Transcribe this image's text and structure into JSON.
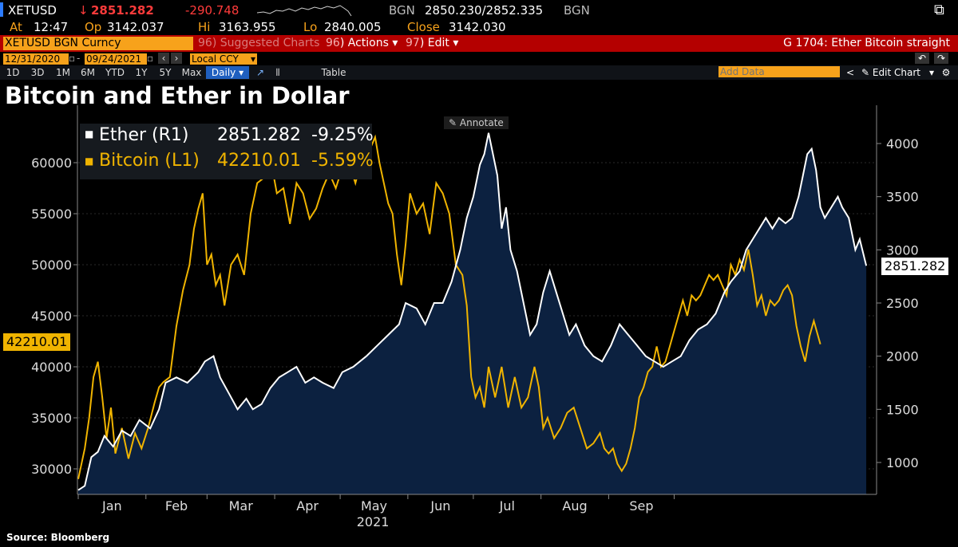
{
  "header": {
    "ticker": "XETUSD",
    "last_price": "2851.282",
    "change": "-290.748",
    "source_code": "BGN",
    "bid_ask": "2850.230/2852.335",
    "source_code_2": "BGN",
    "time_label": "At",
    "time": "12:47",
    "open_label": "Op",
    "open": "3142.037",
    "high_label": "Hi",
    "high": "3163.955",
    "low_label": "Lo",
    "low": "2840.005",
    "close_label": "Close",
    "close": "3142.030"
  },
  "menu": {
    "security": "XETUSD BGN Curncy",
    "suggested": "Suggested Charts",
    "suggested_num": "96",
    "actions": "Actions",
    "actions_num": "96",
    "edit": "Edit",
    "edit_num": "97",
    "chart_id": "G 1704: Ether Bitcoin straight"
  },
  "controls": {
    "start_date": "12/31/2020",
    "end_date": "09/24/2021",
    "currency": "Local CCY",
    "ranges": [
      "1D",
      "3D",
      "1M",
      "6M",
      "YTD",
      "1Y",
      "5Y",
      "Max"
    ],
    "frequency": "Daily",
    "table_label": "Table",
    "add_data_placeholder": "Add Data",
    "edit_chart": "Edit Chart"
  },
  "chart": {
    "title": "Bitcoin and Ether in Dollar",
    "annotate": "Annotate",
    "source": "Source: Bloomberg",
    "legend": [
      {
        "name": "Ether (R1)",
        "last": "2851.282",
        "change": "-9.25%",
        "color": "#ffffff"
      },
      {
        "name": "Bitcoin (L1)",
        "last": "42210.01",
        "change": "-5.59%",
        "color": "#f0b400"
      }
    ],
    "left_last_label": "42210.01",
    "right_last_label": "2851.282"
  },
  "chart_data": {
    "type": "line",
    "title": "Bitcoin and Ether in Dollar",
    "x_axis": {
      "labels": [
        "Jan",
        "Feb",
        "Mar",
        "Apr",
        "May",
        "Jun",
        "Jul",
        "Aug",
        "Sep"
      ],
      "year": "2021"
    },
    "left_axis": {
      "ylim": [
        27500,
        65000
      ],
      "ticks": [
        30000,
        35000,
        40000,
        45000,
        50000,
        55000,
        60000
      ]
    },
    "right_axis": {
      "ylim": [
        700,
        4300
      ],
      "ticks": [
        1000,
        1500,
        2000,
        2500,
        3000,
        3500,
        4000
      ]
    },
    "series": [
      {
        "name": "Ether (R1)",
        "axis": "right",
        "style": "white line with navy area fill",
        "color": "#ffffff",
        "fill": "#0c2140",
        "points": [
          [
            0,
            740
          ],
          [
            3,
            780
          ],
          [
            6,
            1050
          ],
          [
            9,
            1100
          ],
          [
            12,
            1250
          ],
          [
            16,
            1150
          ],
          [
            20,
            1300
          ],
          [
            24,
            1250
          ],
          [
            28,
            1400
          ],
          [
            33,
            1320
          ],
          [
            37,
            1500
          ],
          [
            40,
            1750
          ],
          [
            45,
            1800
          ],
          [
            50,
            1750
          ],
          [
            55,
            1850
          ],
          [
            58,
            1950
          ],
          [
            62,
            2000
          ],
          [
            65,
            1800
          ],
          [
            69,
            1650
          ],
          [
            73,
            1500
          ],
          [
            77,
            1600
          ],
          [
            80,
            1500
          ],
          [
            84,
            1550
          ],
          [
            88,
            1700
          ],
          [
            92,
            1800
          ],
          [
            96,
            1850
          ],
          [
            100,
            1900
          ],
          [
            104,
            1750
          ],
          [
            108,
            1800
          ],
          [
            112,
            1750
          ],
          [
            117,
            1700
          ],
          [
            121,
            1850
          ],
          [
            126,
            1900
          ],
          [
            132,
            2000
          ],
          [
            137,
            2100
          ],
          [
            142,
            2200
          ],
          [
            147,
            2300
          ],
          [
            150,
            2500
          ],
          [
            155,
            2450
          ],
          [
            159,
            2300
          ],
          [
            163,
            2500
          ],
          [
            167,
            2500
          ],
          [
            171,
            2700
          ],
          [
            175,
            3000
          ],
          [
            178,
            3300
          ],
          [
            181,
            3500
          ],
          [
            184,
            3800
          ],
          [
            186,
            3900
          ],
          [
            188,
            4100
          ],
          [
            190,
            3900
          ],
          [
            192,
            3700
          ],
          [
            194,
            3200
          ],
          [
            196,
            3400
          ],
          [
            198,
            3000
          ],
          [
            201,
            2800
          ],
          [
            204,
            2500
          ],
          [
            207,
            2200
          ],
          [
            210,
            2300
          ],
          [
            213,
            2600
          ],
          [
            216,
            2800
          ],
          [
            219,
            2600
          ],
          [
            222,
            2400
          ],
          [
            225,
            2200
          ],
          [
            228,
            2300
          ],
          [
            232,
            2100
          ],
          [
            236,
            2000
          ],
          [
            240,
            1950
          ],
          [
            244,
            2100
          ],
          [
            248,
            2300
          ],
          [
            252,
            2200
          ],
          [
            256,
            2100
          ],
          [
            260,
            2000
          ],
          [
            264,
            1950
          ],
          [
            268,
            1900
          ],
          [
            272,
            1950
          ],
          [
            276,
            2000
          ],
          [
            280,
            2150
          ],
          [
            284,
            2250
          ],
          [
            288,
            2300
          ],
          [
            292,
            2400
          ],
          [
            296,
            2600
          ],
          [
            299,
            2700
          ],
          [
            303,
            2800
          ],
          [
            306,
            3000
          ],
          [
            309,
            3100
          ],
          [
            312,
            3200
          ],
          [
            315,
            3300
          ],
          [
            318,
            3200
          ],
          [
            321,
            3300
          ],
          [
            324,
            3250
          ],
          [
            327,
            3300
          ],
          [
            330,
            3500
          ],
          [
            332,
            3700
          ],
          [
            334,
            3900
          ],
          [
            336,
            3950
          ],
          [
            338,
            3750
          ],
          [
            340,
            3400
          ],
          [
            342,
            3300
          ],
          [
            345,
            3400
          ],
          [
            348,
            3500
          ],
          [
            350,
            3400
          ],
          [
            353,
            3300
          ],
          [
            356,
            3000
          ],
          [
            358,
            3100
          ],
          [
            361,
            2851
          ]
        ]
      },
      {
        "name": "Bitcoin (L1)",
        "axis": "left",
        "style": "yellow line",
        "color": "#f0b400",
        "points": [
          [
            0,
            29000
          ],
          [
            3,
            32000
          ],
          [
            5,
            35000
          ],
          [
            7,
            39000
          ],
          [
            9,
            40500
          ],
          [
            11,
            37000
          ],
          [
            13,
            33000
          ],
          [
            15,
            36000
          ],
          [
            17,
            31500
          ],
          [
            20,
            34000
          ],
          [
            23,
            31000
          ],
          [
            26,
            33500
          ],
          [
            29,
            32000
          ],
          [
            32,
            34000
          ],
          [
            35,
            36500
          ],
          [
            37,
            38000
          ],
          [
            39,
            38500
          ],
          [
            42,
            39000
          ],
          [
            45,
            44000
          ],
          [
            48,
            47500
          ],
          [
            51,
            50000
          ],
          [
            53,
            53500
          ],
          [
            55,
            55500
          ],
          [
            57,
            57000
          ],
          [
            59,
            50000
          ],
          [
            61,
            51000
          ],
          [
            63,
            48000
          ],
          [
            65,
            49000
          ],
          [
            67,
            46000
          ],
          [
            70,
            50000
          ],
          [
            73,
            51000
          ],
          [
            76,
            49000
          ],
          [
            79,
            55000
          ],
          [
            82,
            58000
          ],
          [
            85,
            58500
          ],
          [
            88,
            60500
          ],
          [
            91,
            57000
          ],
          [
            94,
            57500
          ],
          [
            97,
            54000
          ],
          [
            100,
            58000
          ],
          [
            103,
            57000
          ],
          [
            106,
            54500
          ],
          [
            109,
            55500
          ],
          [
            112,
            57500
          ],
          [
            115,
            59000
          ],
          [
            118,
            57500
          ],
          [
            121,
            59500
          ],
          [
            124,
            60000
          ],
          [
            127,
            58000
          ],
          [
            130,
            60500
          ],
          [
            132,
            63000
          ],
          [
            134,
            61500
          ],
          [
            136,
            62500
          ],
          [
            138,
            60000
          ],
          [
            140,
            58000
          ],
          [
            142,
            56000
          ],
          [
            144,
            55000
          ],
          [
            146,
            51000
          ],
          [
            148,
            48000
          ],
          [
            150,
            52000
          ],
          [
            152,
            57000
          ],
          [
            155,
            55000
          ],
          [
            158,
            56000
          ],
          [
            161,
            53000
          ],
          [
            164,
            58000
          ],
          [
            167,
            57000
          ],
          [
            170,
            55000
          ],
          [
            173,
            50000
          ],
          [
            176,
            49000
          ],
          [
            178,
            46000
          ],
          [
            180,
            39000
          ],
          [
            182,
            37000
          ],
          [
            184,
            38000
          ],
          [
            186,
            36000
          ],
          [
            188,
            40000
          ],
          [
            191,
            37000
          ],
          [
            194,
            40000
          ],
          [
            197,
            36000
          ],
          [
            200,
            39000
          ],
          [
            203,
            36000
          ],
          [
            206,
            37000
          ],
          [
            209,
            40000
          ],
          [
            211,
            38000
          ],
          [
            213,
            34000
          ],
          [
            215,
            35000
          ],
          [
            218,
            33000
          ],
          [
            221,
            34000
          ],
          [
            224,
            35500
          ],
          [
            227,
            36000
          ],
          [
            230,
            34000
          ],
          [
            233,
            32000
          ],
          [
            236,
            32500
          ],
          [
            239,
            33500
          ],
          [
            241,
            32000
          ],
          [
            243,
            31500
          ],
          [
            245,
            32000
          ],
          [
            247,
            30500
          ],
          [
            249,
            29800
          ],
          [
            251,
            30500
          ],
          [
            253,
            32000
          ],
          [
            255,
            34000
          ],
          [
            257,
            37000
          ],
          [
            259,
            38000
          ],
          [
            261,
            39500
          ],
          [
            263,
            40000
          ],
          [
            265,
            42000
          ],
          [
            267,
            40000
          ],
          [
            269,
            40500
          ],
          [
            271,
            42000
          ],
          [
            273,
            43500
          ],
          [
            275,
            45000
          ],
          [
            277,
            46500
          ],
          [
            279,
            45000
          ],
          [
            281,
            47000
          ],
          [
            283,
            46500
          ],
          [
            285,
            47000
          ],
          [
            287,
            48000
          ],
          [
            289,
            49000
          ],
          [
            291,
            48500
          ],
          [
            293,
            49000
          ],
          [
            295,
            48000
          ],
          [
            297,
            47000
          ],
          [
            299,
            50000
          ],
          [
            301,
            49000
          ],
          [
            303,
            50500
          ],
          [
            305,
            49500
          ],
          [
            307,
            51500
          ],
          [
            309,
            49000
          ],
          [
            311,
            46000
          ],
          [
            313,
            47000
          ],
          [
            315,
            45000
          ],
          [
            317,
            46500
          ],
          [
            319,
            46000
          ],
          [
            321,
            46500
          ],
          [
            323,
            47500
          ],
          [
            325,
            48000
          ],
          [
            327,
            47000
          ],
          [
            329,
            44000
          ],
          [
            331,
            42000
          ],
          [
            333,
            40500
          ],
          [
            335,
            43000
          ],
          [
            337,
            44500
          ],
          [
            340,
            42210
          ]
        ]
      }
    ]
  }
}
